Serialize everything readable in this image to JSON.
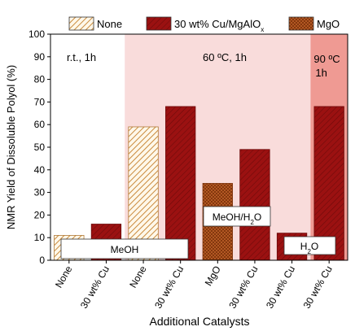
{
  "chart_data": {
    "type": "bar",
    "ylabel": "NMR Yield of Dissoluble Polyol (%)",
    "xlabel": "Additional Catalysts",
    "ylim": [
      0,
      100
    ],
    "yticks": [
      0,
      10,
      20,
      30,
      40,
      50,
      60,
      70,
      80,
      90,
      100
    ],
    "grid": false,
    "legend_position": "top",
    "legend": [
      {
        "name": "None",
        "pattern": "hatch",
        "color": "#c98a3c"
      },
      {
        "name": "30 wt% Cu/MgAlO",
        "sub": "x",
        "pattern": "solid",
        "color": "#9b1111"
      },
      {
        "name": "MgO",
        "pattern": "crosshatch",
        "color": "#b0501c"
      }
    ],
    "categories": [
      "None",
      "30 wt% Cu",
      "None",
      "30 wt% Cu",
      "MgO",
      "30 wt% Cu",
      "30 wt% Cu",
      "30 wt% Cu"
    ],
    "values": [
      11,
      16,
      59,
      68,
      34,
      49,
      12,
      68
    ],
    "bar_series": [
      "None",
      "Cu",
      "None",
      "Cu",
      "MgO",
      "Cu",
      "Cu",
      "Cu"
    ],
    "regions": [
      {
        "label": "r.t., 1h",
        "from": 0,
        "to": 2,
        "color": "#ffffff"
      },
      {
        "label": "60 ºC, 1h",
        "from": 2,
        "to": 7,
        "color": "#f9dcdb"
      },
      {
        "label_line1": "90 ºC",
        "label_line2": "1h",
        "from": 7,
        "to": 8,
        "color": "#ef9a93"
      }
    ],
    "solvent_labels": [
      {
        "text": "MeOH",
        "from": 0,
        "to": 4
      },
      {
        "text": "MeOH/H",
        "sub": "2",
        "tail": "O",
        "from": 4,
        "to": 6
      },
      {
        "text": "H",
        "sub": "2",
        "tail": "O",
        "from": 6,
        "to": 7
      }
    ],
    "colors": {
      "cu": "#9b1111",
      "none": "#c98a3c",
      "mgo": "#b0501c"
    }
  }
}
